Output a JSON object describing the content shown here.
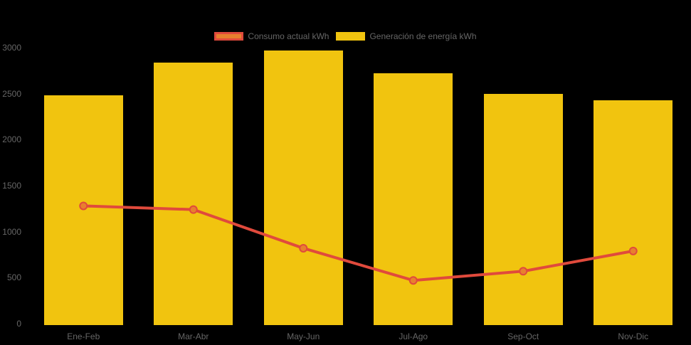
{
  "chart_data": {
    "type": "bar+line",
    "title": "",
    "xlabel": "",
    "ylabel": "",
    "categories": [
      "Ene-Feb",
      "Mar-Abr",
      "May-Jun",
      "Jul-Ago",
      "Sep-Oct",
      "Nov-Dic"
    ],
    "series": [
      {
        "name": "Consumo actual kWh",
        "type": "line",
        "values": [
          1280,
          1240,
          820,
          470,
          570,
          790
        ],
        "line_color": "#e04a3c",
        "point_fill": "#e8802e"
      },
      {
        "name": "Generación de energía kWh",
        "type": "bar",
        "values": [
          2480,
          2840,
          2970,
          2720,
          2500,
          2430
        ],
        "bar_color": "#f1c40f"
      }
    ],
    "ylim": [
      0,
      3000
    ],
    "yticks": [
      0,
      500,
      1000,
      1500,
      2000,
      2500,
      3000
    ],
    "grid": false,
    "legend_position": "top",
    "background_color": "#000000",
    "axis_text_color": "#666666"
  }
}
